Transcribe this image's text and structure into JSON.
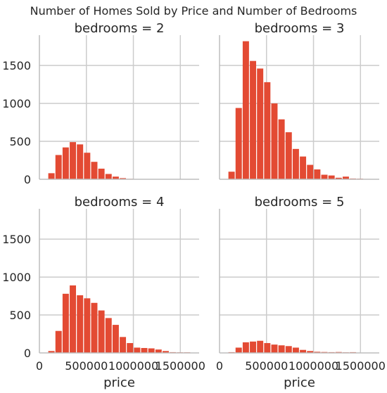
{
  "chart_data": {
    "type": "bar",
    "title": "Number of Homes Sold by Price and Number of Bedrooms",
    "xlabel": "price",
    "ylabel": "",
    "xlim": [
      0,
      1700000
    ],
    "ylim": [
      0,
      1900
    ],
    "xticks": [
      0,
      500000,
      1000000,
      1500000
    ],
    "xtick_labels": [
      "0",
      "500000",
      "1000000",
      "1500000"
    ],
    "yticks": [
      0,
      500,
      1000,
      1500
    ],
    "ytick_labels": [
      "0",
      "500",
      "1000",
      "1500"
    ],
    "grid": true,
    "bar_color": "#e34a33",
    "bin_width": 76000,
    "bins_start": [
      90000,
      166000,
      242000,
      318000,
      394000,
      470000,
      546000,
      622000,
      698000,
      774000,
      850000,
      926000,
      1002000,
      1078000,
      1154000,
      1230000,
      1306000,
      1382000,
      1458000,
      1534000
    ],
    "panels": [
      {
        "title": "bedrooms = 2",
        "values": [
          80,
          320,
          420,
          490,
          460,
          350,
          230,
          140,
          70,
          35,
          15,
          6,
          3,
          2,
          1,
          1,
          0,
          0,
          0,
          0
        ]
      },
      {
        "title": "bedrooms = 3",
        "values": [
          100,
          940,
          1820,
          1560,
          1460,
          1280,
          1000,
          790,
          620,
          400,
          300,
          190,
          130,
          60,
          50,
          20,
          35,
          10,
          8,
          5
        ]
      },
      {
        "title": "bedrooms = 4",
        "values": [
          25,
          290,
          780,
          890,
          760,
          720,
          660,
          560,
          460,
          370,
          210,
          130,
          70,
          65,
          60,
          45,
          25,
          10,
          8,
          8
        ]
      },
      {
        "title": "bedrooms = 5",
        "values": [
          10,
          70,
          140,
          150,
          160,
          130,
          110,
          100,
          90,
          70,
          40,
          25,
          15,
          12,
          10,
          12,
          8,
          10,
          4,
          3
        ]
      }
    ]
  }
}
